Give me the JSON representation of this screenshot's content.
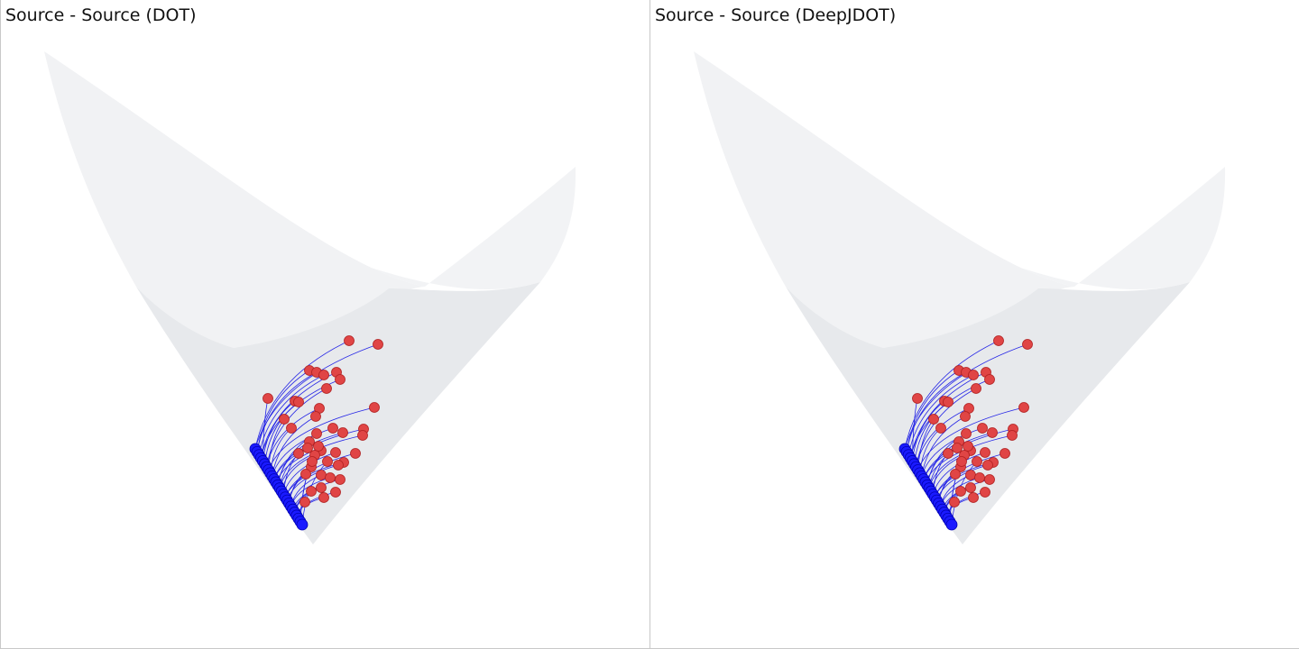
{
  "panels": [
    {
      "title": "Source - Source (DOT)"
    },
    {
      "title": "Source - Source (DeepJDOT)"
    }
  ],
  "colors": {
    "surface_back": "#f1f2f4",
    "surface_front": "#e6e8eb",
    "surface_edge": "#e9ebee",
    "source_point": "#1a1aff",
    "source_point_stroke": "#0000b0",
    "target_point": "#e04545",
    "target_point_stroke": "#b02020",
    "link_line": "#2626e6"
  }
}
